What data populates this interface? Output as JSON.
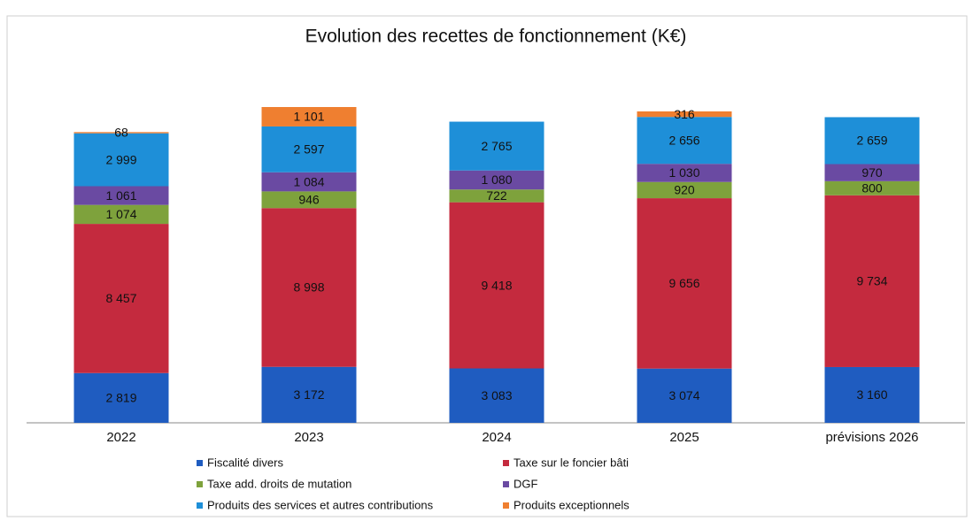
{
  "chart_data": {
    "type": "stacked_bar",
    "title": "Evolution des recettes de fonctionnement (K€)",
    "categories": [
      "2022",
      "2023",
      "2024",
      "2025",
      "prévisions 2026"
    ],
    "series": [
      {
        "name": "Fiscalité divers",
        "color": "#1f5cc0",
        "values": [
          2819,
          3172,
          3083,
          3074,
          3160
        ],
        "value_labels": [
          "2 819",
          "3 172",
          "3 083",
          "3 074",
          "3 160"
        ]
      },
      {
        "name": "Taxe sur le foncier bâti",
        "color": "#c42a3e",
        "values": [
          8457,
          8998,
          9418,
          9656,
          9734
        ],
        "value_labels": [
          "8 457",
          "8 998",
          "9 418",
          "9 656",
          "9 734"
        ]
      },
      {
        "name": "Taxe add. droits de mutation",
        "color": "#7ea23c",
        "values": [
          1074,
          946,
          722,
          920,
          800
        ],
        "value_labels": [
          "1 074",
          "946",
          "722",
          "920",
          "800"
        ]
      },
      {
        "name": "DGF",
        "color": "#6a4aa2",
        "values": [
          1061,
          1084,
          1080,
          1030,
          970
        ],
        "value_labels": [
          "1 061",
          "1 084",
          "1 080",
          "1 030",
          "970"
        ]
      },
      {
        "name": "Produits des services et autres contributions",
        "color": "#1e8fd8",
        "values": [
          2999,
          2597,
          2765,
          2656,
          2659
        ],
        "value_labels": [
          "2 999",
          "2 597",
          "2 765",
          "2 656",
          "2 659"
        ]
      },
      {
        "name": "Produits exceptionnels",
        "color": "#ef7f30",
        "values": [
          68,
          1101,
          null,
          316,
          null
        ],
        "value_labels": [
          "68",
          "1 101",
          null,
          "316",
          null
        ]
      }
    ]
  }
}
